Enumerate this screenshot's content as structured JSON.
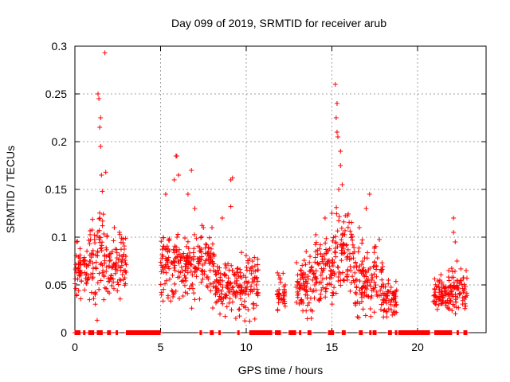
{
  "chart_data": {
    "type": "scatter",
    "title": "Day 099 of 2019, SRMTID for receiver arub",
    "xlabel": "GPS time / hours",
    "ylabel": "SRMTID / TECUs",
    "xlim": [
      0,
      24
    ],
    "ylim": [
      0,
      0.3
    ],
    "grid": true,
    "marker": "+",
    "color": "#ff0000",
    "x_ticks": [
      "0",
      "5",
      "10",
      "15",
      "20"
    ],
    "x_tick_values": [
      0,
      5,
      10,
      15,
      20
    ],
    "y_ticks": [
      "0",
      "0.05",
      "0.1",
      "0.15",
      "0.2",
      "0.25",
      "0.3"
    ],
    "y_tick_values": [
      0,
      0.05,
      0.1,
      0.15,
      0.2,
      0.25,
      0.3
    ],
    "clusters": [
      {
        "x_start": 0.0,
        "x_end": 0.8,
        "median": 0.065,
        "spread": 0.02,
        "peaks": [
          [
            0.1,
            0.095
          ],
          [
            0.3,
            0.088
          ],
          [
            0.6,
            0.075
          ]
        ]
      },
      {
        "x_start": 0.8,
        "x_end": 1.9,
        "median": 0.075,
        "spread": 0.03,
        "peaks": [
          [
            1.35,
            0.25
          ],
          [
            1.4,
            0.245
          ],
          [
            1.45,
            0.215
          ],
          [
            1.5,
            0.225
          ],
          [
            1.5,
            0.195
          ],
          [
            1.55,
            0.165
          ],
          [
            1.6,
            0.148
          ],
          [
            1.75,
            0.293
          ],
          [
            1.8,
            0.168
          ],
          [
            1.3,
            0.013
          ]
        ]
      },
      {
        "x_start": 1.9,
        "x_end": 3.0,
        "median": 0.07,
        "spread": 0.02,
        "peaks": [
          [
            2.3,
            0.11
          ],
          [
            2.6,
            0.105
          ],
          [
            2.8,
            0.098
          ]
        ]
      },
      {
        "x_start": 5.0,
        "x_end": 6.3,
        "median": 0.07,
        "spread": 0.025,
        "peaks": [
          [
            5.3,
            0.145
          ],
          [
            5.8,
            0.16
          ],
          [
            5.9,
            0.185
          ],
          [
            5.95,
            0.185
          ],
          [
            6.05,
            0.165
          ]
        ]
      },
      {
        "x_start": 6.3,
        "x_end": 8.2,
        "median": 0.07,
        "spread": 0.025,
        "peaks": [
          [
            6.6,
            0.145
          ],
          [
            6.8,
            0.17
          ],
          [
            7.0,
            0.13
          ],
          [
            7.5,
            0.11
          ],
          [
            8.0,
            0.11
          ]
        ]
      },
      {
        "x_start": 8.2,
        "x_end": 10.7,
        "median": 0.05,
        "spread": 0.02,
        "peaks": [
          [
            9.1,
            0.16
          ],
          [
            9.2,
            0.162
          ],
          [
            9.1,
            0.132
          ],
          [
            8.6,
            0.12
          ],
          [
            10.2,
            0.012
          ]
        ]
      },
      {
        "x_start": 11.8,
        "x_end": 12.3,
        "median": 0.04,
        "spread": 0.012,
        "peaks": [
          [
            11.9,
            0.06
          ]
        ]
      },
      {
        "x_start": 12.9,
        "x_end": 14.0,
        "median": 0.05,
        "spread": 0.02,
        "peaks": [
          [
            13.5,
            0.085
          ]
        ]
      },
      {
        "x_start": 14.0,
        "x_end": 15.2,
        "median": 0.065,
        "spread": 0.025,
        "peaks": [
          [
            14.6,
            0.12
          ],
          [
            15.0,
            0.125
          ]
        ]
      },
      {
        "x_start": 15.2,
        "x_end": 16.3,
        "median": 0.085,
        "spread": 0.03,
        "peaks": [
          [
            15.2,
            0.26
          ],
          [
            15.3,
            0.24
          ],
          [
            15.25,
            0.225
          ],
          [
            15.3,
            0.21
          ],
          [
            15.35,
            0.205
          ],
          [
            15.5,
            0.19
          ],
          [
            15.5,
            0.175
          ],
          [
            15.6,
            0.155
          ],
          [
            15.4,
            0.15
          ]
        ]
      },
      {
        "x_start": 16.3,
        "x_end": 18.0,
        "median": 0.055,
        "spread": 0.025,
        "peaks": [
          [
            17.2,
            0.145
          ],
          [
            17.0,
            0.13
          ],
          [
            16.6,
            0.11
          ],
          [
            17.5,
            0.09
          ]
        ]
      },
      {
        "x_start": 18.0,
        "x_end": 18.8,
        "median": 0.035,
        "spread": 0.012,
        "peaks": [
          [
            18.3,
            0.055
          ]
        ]
      },
      {
        "x_start": 20.9,
        "x_end": 21.7,
        "median": 0.04,
        "spread": 0.012,
        "peaks": [
          [
            21.3,
            0.055
          ]
        ]
      },
      {
        "x_start": 21.7,
        "x_end": 22.9,
        "median": 0.045,
        "spread": 0.015,
        "peaks": [
          [
            22.1,
            0.12
          ],
          [
            22.1,
            0.105
          ],
          [
            22.2,
            0.095
          ],
          [
            22.3,
            0.075
          ]
        ]
      }
    ],
    "zero_ranges": [
      [
        0.0,
        0.3
      ],
      [
        0.5,
        0.6
      ],
      [
        0.8,
        1.1
      ],
      [
        1.3,
        1.6
      ],
      [
        1.9,
        2.1
      ],
      [
        2.4,
        2.5
      ],
      [
        3.0,
        5.0
      ],
      [
        7.3,
        7.4
      ],
      [
        7.9,
        8.1
      ],
      [
        8.4,
        8.5
      ],
      [
        9.5,
        9.6
      ],
      [
        10.2,
        11.5
      ],
      [
        11.7,
        12.0
      ],
      [
        12.5,
        12.9
      ],
      [
        13.1,
        13.2
      ],
      [
        13.6,
        13.8
      ],
      [
        14.8,
        15.1
      ],
      [
        15.6,
        15.8
      ],
      [
        16.6,
        16.8
      ],
      [
        17.2,
        17.3
      ],
      [
        17.4,
        17.6
      ],
      [
        18.3,
        18.5
      ],
      [
        18.7,
        18.8
      ],
      [
        18.9,
        20.7
      ],
      [
        21.0,
        22.0
      ],
      [
        22.3,
        22.4
      ],
      [
        22.7,
        22.9
      ]
    ]
  }
}
